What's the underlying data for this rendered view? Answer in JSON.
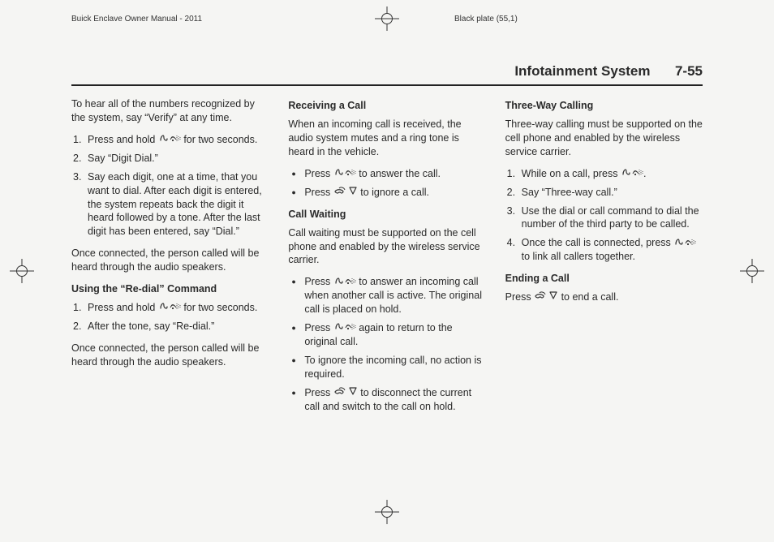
{
  "print": {
    "left": "Buick Enclave Owner Manual - 2011",
    "right": "Black plate (55,1)"
  },
  "header": {
    "title": "Infotainment System",
    "page": "7-55"
  },
  "icons": {
    "voice": "phone-voice-icon",
    "hangup": "hangup-icon"
  },
  "col1": {
    "intro": "To hear all of the numbers recognized by the system, say “Verify” at any time.",
    "steps1": [
      {
        "pre": "Press and hold ",
        "icon": "voice",
        "post": " for two seconds."
      },
      {
        "text": "Say “Digit Dial.”"
      },
      {
        "text": "Say each digit, one at a time, that you want to dial. After each digit is entered, the system repeats back the digit it heard followed by a tone. After the last digit has been entered, say “Dial.”"
      }
    ],
    "after1": "Once connected, the person called will be heard through the audio speakers.",
    "redialHead": "Using the “Re-dial” Command",
    "steps2": [
      {
        "pre": "Press and hold ",
        "icon": "voice",
        "post": " for two seconds."
      },
      {
        "text": "After the tone, say “Re-dial.”"
      }
    ],
    "after2": "Once connected, the person called will be heard through the audio speakers."
  },
  "col2": {
    "recvHead": "Receiving a Call",
    "recvIntro": "When an incoming call is received, the audio system mutes and a ring tone is heard in the vehicle.",
    "recvBul": [
      {
        "pre": "Press ",
        "icon": "voice",
        "post": " to answer the call."
      },
      {
        "pre": "Press ",
        "icon": "hangup",
        "post": " to ignore a call."
      }
    ],
    "cwHead": "Call Waiting",
    "cwIntro": "Call waiting must be supported on the cell phone and enabled by the wireless service carrier.",
    "cwBul": [
      {
        "pre": "Press ",
        "icon": "voice",
        "post": " to answer an incoming call when another call is active. The original call is placed on hold."
      },
      {
        "pre": "Press ",
        "icon": "voice",
        "post": " again to return to the original call."
      },
      {
        "text": "To ignore the incoming call, no action is required."
      },
      {
        "pre": "Press ",
        "icon": "hangup",
        "post": " to disconnect the current call and switch to the call on hold."
      }
    ]
  },
  "col3": {
    "twHead": "Three-Way Calling",
    "twIntro": "Three-way calling must be supported on the cell phone and enabled by the wireless service carrier.",
    "twSteps": [
      {
        "pre": "While on a call, press ",
        "icon": "voice",
        "post": "."
      },
      {
        "text": "Say “Three-way call.”"
      },
      {
        "text": "Use the dial or call command to dial the number of the third party to be called."
      },
      {
        "pre": "Once the call is connected, press ",
        "icon": "voice",
        "post": " to link all callers together."
      }
    ],
    "endHead": "Ending a Call",
    "endPre": "Press ",
    "endPost": " to end a call."
  }
}
